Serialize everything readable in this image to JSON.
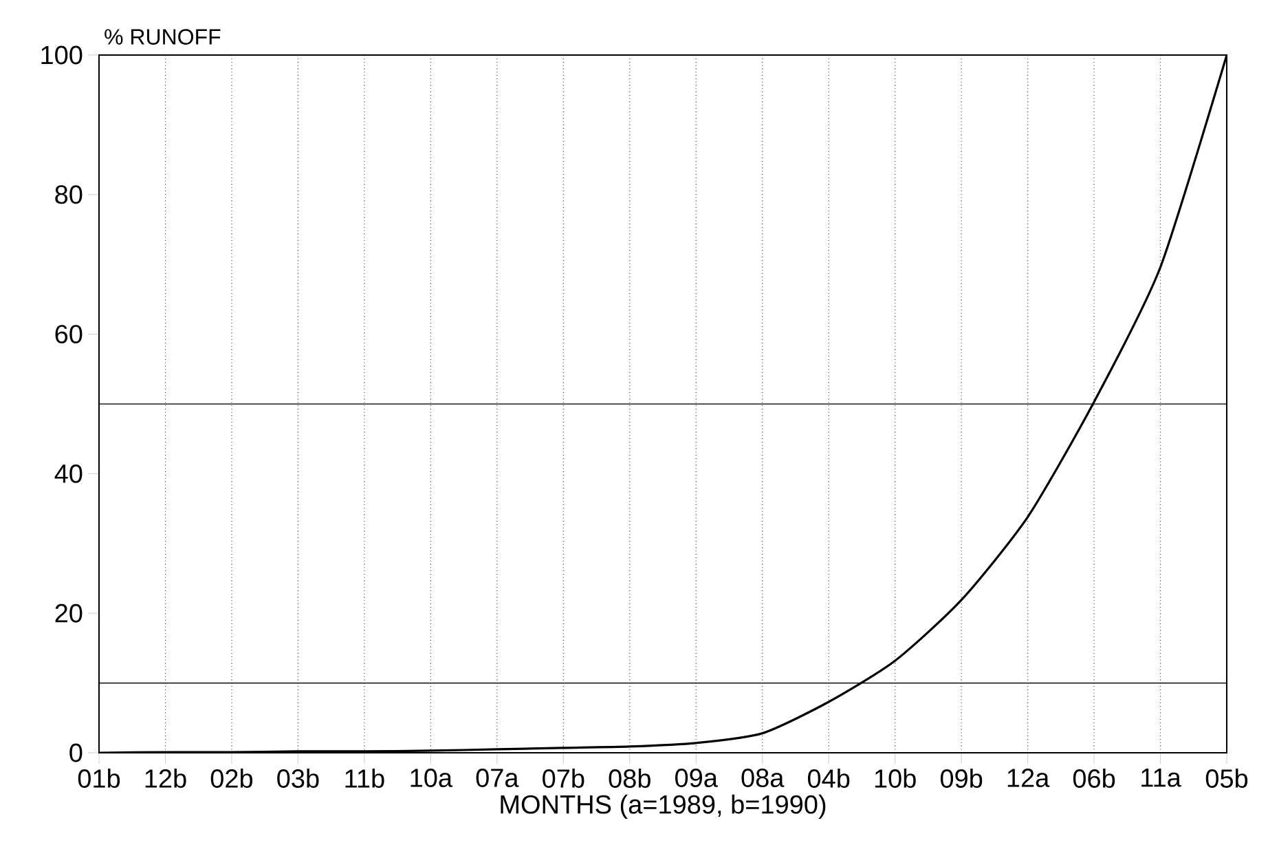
{
  "chart_data": {
    "type": "line",
    "ylabel": "% RUNOFF",
    "xlabel": "MONTHS (a=1989, b=1990)",
    "categories": [
      "01b",
      "12b",
      "02b",
      "03b",
      "11b",
      "10a",
      "07a",
      "07b",
      "08b",
      "09a",
      "08a",
      "04b",
      "10b",
      "09b",
      "12a",
      "06b",
      "11a",
      "05b"
    ],
    "series": [
      {
        "color": "#000000",
        "values": [
          0,
          0.1,
          0.1,
          0.2,
          0.2,
          0.3,
          0.5,
          0.7,
          0.9,
          1.4,
          2.8,
          7.3,
          13.2,
          21.9,
          33.8,
          50.3,
          69.6,
          100
        ]
      }
    ],
    "ylim": [
      0,
      100
    ],
    "yticks": [
      0,
      20,
      40,
      60,
      80,
      100
    ],
    "grid": "x",
    "marker": "none",
    "line_style": "solid",
    "ref_lines": [
      {
        "axis": "y",
        "value": 10,
        "color": "#000000"
      },
      {
        "axis": "y",
        "value": 50,
        "color": "#000000"
      }
    ]
  }
}
